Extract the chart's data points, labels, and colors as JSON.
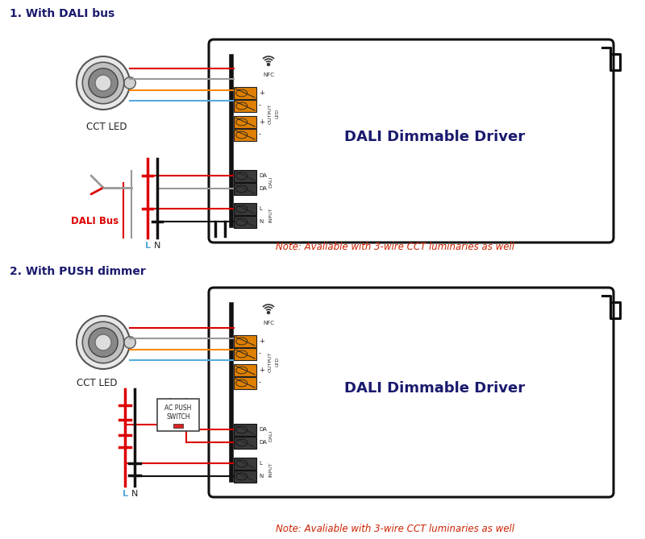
{
  "title1": "1. With DALI bus",
  "title2": "2. With PUSH dimmer",
  "driver_label": "DALI Dimmable Driver",
  "note": "Note: Avaliable with 3-wire CCT luminaries as well",
  "led_label": "CCT LED",
  "dali_label": "DALI Bus",
  "ln_label_L": "L",
  "ln_label_N": "N",
  "nfc_label": "NFC",
  "title_color": "#1a1a6e",
  "note_color": "#cc2200",
  "wire_red": "#dd0000",
  "wire_gray": "#999999",
  "wire_orange": "#ff8800",
  "wire_blue": "#55aadd",
  "wire_black": "#111111",
  "bg_color": "#ffffff",
  "driver_box_color": "#111111",
  "terminal_orange": "#e08000",
  "terminal_dark": "#3a3a3a"
}
